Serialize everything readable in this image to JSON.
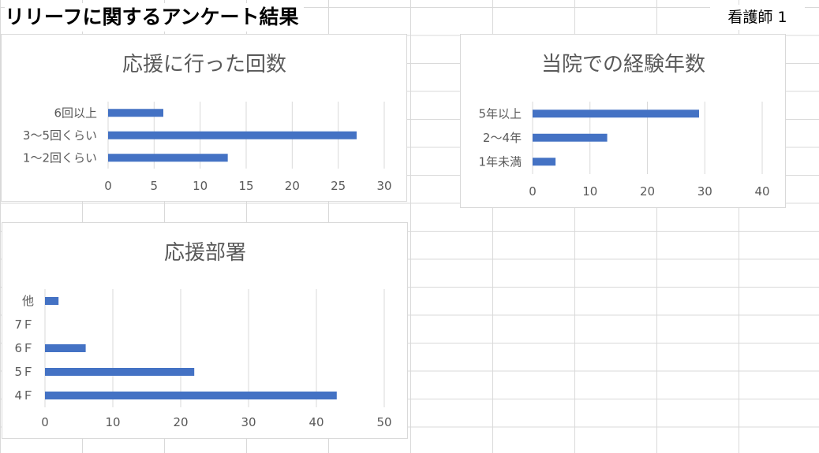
{
  "sheet": {
    "title": "リリーフに関するアンケート結果",
    "label": "看護師 1"
  },
  "colors": {
    "bar": "#4472c4",
    "grid": "#d9d9d9",
    "text": "#595959"
  },
  "chart_data": [
    {
      "id": "support-count",
      "type": "bar",
      "orientation": "horizontal",
      "title": "応援に行った回数",
      "categories": [
        "6回以上",
        "3〜5回くらい",
        "1〜2回くらい"
      ],
      "values": [
        6,
        27,
        13
      ],
      "xlim": [
        0,
        30
      ],
      "xticks": [
        0,
        5,
        10,
        15,
        20,
        25,
        30
      ],
      "grid": true,
      "legend": "none"
    },
    {
      "id": "years-at-hospital",
      "type": "bar",
      "orientation": "horizontal",
      "title": "当院での経験年数",
      "categories": [
        "5年以上",
        "2〜4年",
        "1年未満"
      ],
      "values": [
        29,
        13,
        4
      ],
      "xlim": [
        0,
        40
      ],
      "xticks": [
        0,
        10,
        20,
        30,
        40
      ],
      "grid": true,
      "legend": "none"
    },
    {
      "id": "support-department",
      "type": "bar",
      "orientation": "horizontal",
      "title": "応援部署",
      "categories": [
        "他",
        "7Ｆ",
        "6Ｆ",
        "5Ｆ",
        "4Ｆ"
      ],
      "values": [
        2,
        0,
        6,
        22,
        43
      ],
      "xlim": [
        0,
        50
      ],
      "xticks": [
        0,
        10,
        20,
        30,
        40,
        50
      ],
      "grid": true,
      "legend": "none"
    }
  ]
}
